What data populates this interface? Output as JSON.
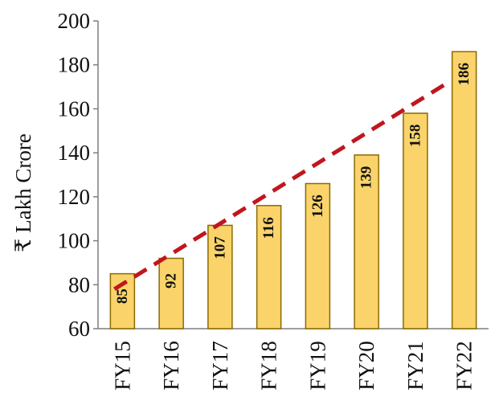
{
  "chart_data": {
    "type": "bar",
    "categories": [
      "FY15",
      "FY16",
      "FY17",
      "FY18",
      "FY19",
      "FY20",
      "FY21",
      "FY22"
    ],
    "values": [
      85,
      92,
      107,
      116,
      126,
      139,
      158,
      186
    ],
    "ylabel": "₹ Lakh Crore",
    "ylim": [
      60,
      200
    ],
    "yticks": [
      60,
      80,
      100,
      120,
      140,
      160,
      180,
      200
    ],
    "bar_color": "#FAD46B",
    "bar_edge_color": "#8A6A00",
    "trendline": {
      "style": "dashed",
      "color": "#C0161E",
      "from": 78,
      "to": 172
    },
    "grid": false,
    "legend": "none"
  }
}
